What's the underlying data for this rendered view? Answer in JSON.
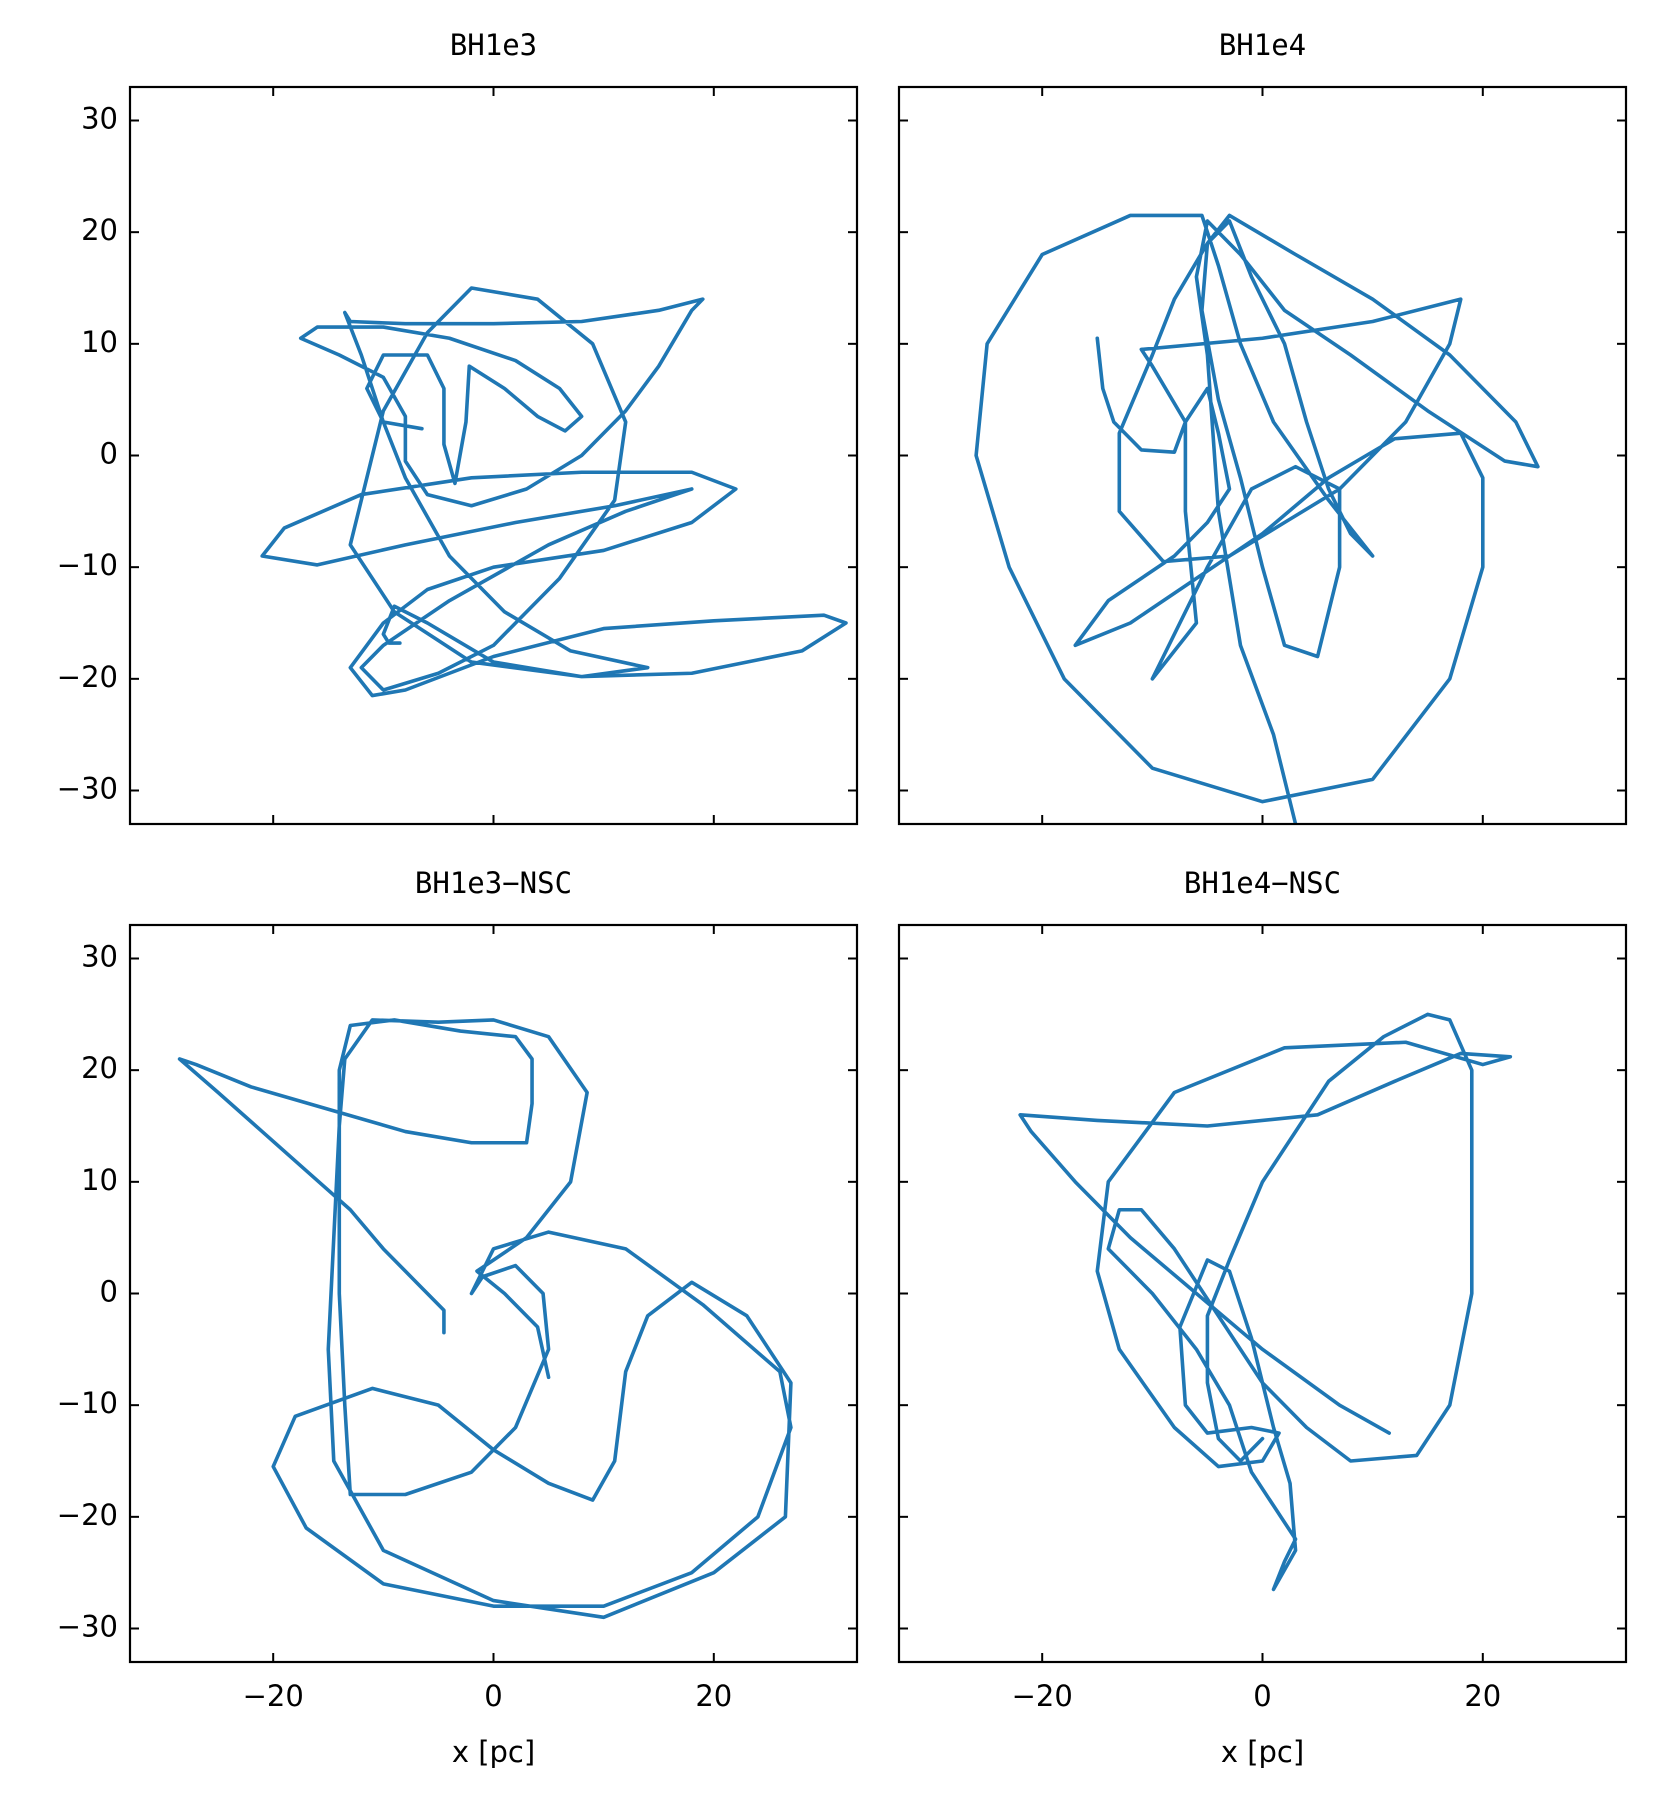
{
  "chart_data": [
    {
      "type": "line",
      "title": "BH1e3",
      "color": "#1f77b4",
      "x": [
        -6.5,
        -10,
        -11.5,
        -10,
        -6,
        -4.5,
        -4.5,
        -3.5,
        -2.5,
        -2.2,
        1,
        4,
        6.5,
        8,
        6,
        2,
        -4,
        -10,
        -16,
        -17.5,
        -14,
        -10,
        -8,
        -8,
        -6,
        -2,
        3,
        8,
        12,
        15,
        18,
        19,
        15,
        8,
        0,
        -8,
        -13,
        -13.5,
        -12,
        -10,
        -8,
        -4,
        1,
        7,
        14,
        8,
        -2,
        -9,
        -13,
        -10,
        -6,
        -2,
        4,
        9,
        12,
        11,
        6,
        0,
        -5,
        -10,
        -12,
        -10,
        -4,
        5,
        12,
        18,
        11,
        2,
        -8,
        -16,
        -21,
        -19,
        -12,
        -2,
        8,
        18,
        22,
        18,
        10,
        0,
        -6,
        -10,
        -13,
        -11,
        -8,
        0,
        10,
        20,
        30,
        32,
        28,
        18,
        8,
        0,
        -6,
        -9,
        -10,
        -9.5,
        -8.5
      ],
      "values": [
        2.4,
        3,
        6,
        9,
        9,
        6,
        1,
        -2.5,
        3,
        8,
        6,
        3.5,
        2.2,
        3.5,
        6,
        8.5,
        10.5,
        11.5,
        11.5,
        10.5,
        9,
        7,
        3.5,
        -0.5,
        -3.5,
        -4.5,
        -3,
        0,
        4,
        8,
        13,
        14,
        13,
        12,
        11.8,
        11.8,
        12,
        12.8,
        9,
        3,
        -2,
        -9,
        -14,
        -17.5,
        -19,
        -19.8,
        -18.5,
        -14,
        -8,
        4,
        11,
        15,
        14,
        10,
        3,
        -4,
        -11,
        -17,
        -19.5,
        -21,
        -19,
        -17,
        -13,
        -8,
        -5,
        -3,
        -4.5,
        -6,
        -8,
        -9.8,
        -9,
        -6.5,
        -3.5,
        -2,
        -1.5,
        -1.5,
        -3,
        -6,
        -8.5,
        -10,
        -12,
        -15,
        -19,
        -21.5,
        -21,
        -18,
        -15.5,
        -14.8,
        -14.3,
        -15,
        -17.5,
        -19.5,
        -19.8,
        -18.5,
        -15,
        -13.5,
        -16,
        -16.8,
        -16.8
      ],
      "xlim": [
        -33,
        33
      ],
      "ylim": [
        -33,
        33
      ],
      "xticks": [
        -20,
        0,
        20
      ],
      "yticks": [
        {
          "value": -30,
          "label": "−30"
        },
        {
          "value": -20,
          "label": "−20"
        },
        {
          "value": -10,
          "label": "−10"
        },
        0,
        10,
        20,
        30
      ],
      "tick_labels": {
        "x": false,
        "y": true
      }
    },
    {
      "type": "line",
      "title": "BH1e4",
      "color": "#1f77b4",
      "x": [
        -15,
        -14.5,
        -13.5,
        -11,
        -8,
        -7,
        -10,
        -11,
        0,
        10,
        18,
        17,
        13,
        7,
        2,
        -3,
        -9,
        -13,
        -13,
        -10,
        -8,
        -5,
        -3,
        -1,
        2,
        4,
        6,
        8,
        10,
        6,
        1,
        -2,
        -4,
        -5.5,
        -12,
        -20,
        -25,
        -26,
        -23,
        -18,
        -10,
        0,
        10,
        17,
        20,
        20,
        18,
        12,
        6,
        0,
        -6,
        -12,
        -17,
        -14,
        -8,
        -5,
        -3,
        -4,
        -5,
        -7,
        -7,
        -6,
        -10,
        -9,
        -5,
        -1,
        3,
        7,
        7,
        5,
        2,
        0,
        -2,
        -4,
        -5.5,
        -5,
        -3,
        3,
        10,
        17,
        23,
        25,
        22,
        15,
        8,
        2,
        -2,
        -5,
        -6,
        -5,
        -4,
        -2,
        1,
        3
      ],
      "values": [
        10.5,
        6,
        3,
        0.5,
        0.3,
        3,
        8,
        9.5,
        10.5,
        12,
        14,
        10,
        3,
        -3,
        -6,
        -9,
        -9.5,
        -5,
        2,
        9,
        14,
        19,
        21,
        16,
        10,
        3,
        -3,
        -7,
        -9,
        -4,
        3,
        10,
        17,
        21.5,
        21.5,
        18,
        10,
        0,
        -10,
        -20,
        -28,
        -31,
        -29,
        -20,
        -10,
        -2,
        2,
        1.5,
        -2,
        -7,
        -11,
        -15,
        -17,
        -13,
        -9,
        -6,
        -3,
        2,
        6,
        3,
        -5,
        -15,
        -20,
        -18,
        -10,
        -3,
        -1,
        -3,
        -10,
        -18,
        -17,
        -10,
        -2,
        5,
        13,
        19,
        21.5,
        18,
        14,
        9,
        3,
        -1,
        -0.5,
        4,
        9,
        13,
        18,
        21,
        16,
        9,
        -5,
        -17,
        -25,
        -33
      ],
      "xlim": [
        -33,
        33
      ],
      "ylim": [
        -33,
        33
      ],
      "xticks": [
        -20,
        0,
        20
      ],
      "yticks": [
        -30,
        -20,
        -10,
        0,
        10,
        20,
        30
      ],
      "tick_labels": {
        "x": false,
        "y": false
      }
    },
    {
      "type": "line",
      "title": "BH1e3−NSC",
      "color": "#1f77b4",
      "x_label": "x [pc]",
      "x": [
        -4.5,
        -4.5,
        -7,
        -10,
        -13,
        -17,
        -21,
        -25,
        -28.5,
        -27,
        -22,
        -15,
        -8,
        -2,
        3,
        3.5,
        3.5,
        2,
        -3,
        -9,
        -13,
        -14,
        -14,
        -14,
        -13.5,
        -13,
        -8,
        -2,
        2,
        5,
        4.5,
        2,
        -1,
        -2,
        0,
        5,
        12,
        19,
        26,
        27,
        24,
        18,
        10,
        0,
        -10,
        -17,
        -20,
        -18,
        -11,
        -5,
        0,
        5,
        9,
        11,
        12,
        14,
        18,
        23,
        27,
        26.5,
        20,
        10,
        0,
        -10,
        -14.5,
        -15,
        -14.5,
        -14,
        -13.5,
        -11,
        -5,
        0,
        5,
        8.5,
        7,
        3,
        -1.5,
        1,
        4,
        5
      ],
      "values": [
        -3.5,
        -1.5,
        1,
        4,
        7.5,
        11,
        14.5,
        18,
        21,
        20.5,
        18.5,
        16.5,
        14.5,
        13.5,
        13.5,
        17,
        21,
        23,
        23.5,
        24.5,
        24,
        20,
        10,
        0,
        -10,
        -18,
        -18,
        -16,
        -12,
        -5,
        0,
        2.5,
        1.5,
        0,
        4,
        5.5,
        4,
        -1,
        -7,
        -12,
        -20,
        -25,
        -28,
        -28,
        -26,
        -21,
        -15.5,
        -11,
        -8.5,
        -10,
        -14,
        -17,
        -18.5,
        -15,
        -7,
        -2,
        1,
        -2,
        -8,
        -20,
        -25,
        -29,
        -27.5,
        -23,
        -15,
        -5,
        5,
        15,
        21,
        24.5,
        24.3,
        24.5,
        23,
        18,
        10,
        5,
        2,
        0,
        -3,
        -7.5
      ],
      "xlim": [
        -33,
        33
      ],
      "ylim": [
        -33,
        33
      ],
      "xticks": [
        {
          "value": -20,
          "label": "−20"
        },
        0,
        20
      ],
      "yticks": [
        {
          "value": -30,
          "label": "−30"
        },
        {
          "value": -20,
          "label": "−20"
        },
        {
          "value": -10,
          "label": "−10"
        },
        0,
        10,
        20,
        30
      ],
      "tick_labels": {
        "x": true,
        "y": true
      }
    },
    {
      "type": "line",
      "title": "BH1e4−NSC",
      "color": "#1f77b4",
      "x_label": "x [pc]",
      "x": [
        11.5,
        7,
        0,
        -6,
        -12,
        -17,
        -21,
        -22,
        -15,
        -5,
        5,
        12,
        18,
        22.5,
        20,
        13,
        2,
        -8,
        -14,
        -15,
        -13,
        -8,
        -4,
        0,
        1.5,
        -1,
        -5,
        -7,
        -7.5,
        -5,
        -3,
        -1,
        1,
        2.5,
        3,
        1,
        2,
        3,
        1,
        -1,
        -3,
        -6,
        -10,
        -14,
        -13,
        -11,
        -8,
        -4,
        0,
        4,
        8,
        14,
        17,
        19,
        19,
        19,
        17,
        15,
        11,
        6,
        0,
        -3,
        -5,
        -5,
        -4,
        -2,
        0
      ],
      "values": [
        -12.5,
        -10,
        -5,
        0,
        5,
        10,
        14.5,
        16,
        15.5,
        15,
        16,
        19,
        21.5,
        21.2,
        20.5,
        22.5,
        22,
        18,
        10,
        2,
        -5,
        -12,
        -15.5,
        -15,
        -12.5,
        -12,
        -12.5,
        -10,
        -3,
        3,
        2,
        -4,
        -12,
        -17,
        -23,
        -26.5,
        -24,
        -22,
        -19,
        -16,
        -10,
        -5,
        0,
        4,
        7.5,
        7.5,
        4,
        -2,
        -8,
        -12,
        -15,
        -14.5,
        -10,
        0,
        10,
        20,
        24.5,
        25,
        23,
        19,
        10,
        3,
        -2,
        -8,
        -13,
        -15,
        -13
      ],
      "xlim": [
        -33,
        33
      ],
      "ylim": [
        -33,
        33
      ],
      "xticks": [
        {
          "value": -20,
          "label": "−20"
        },
        0,
        20
      ],
      "yticks": [
        -30,
        -20,
        -10,
        0,
        10,
        20,
        30
      ],
      "tick_labels": {
        "x": true,
        "y": false
      }
    }
  ]
}
